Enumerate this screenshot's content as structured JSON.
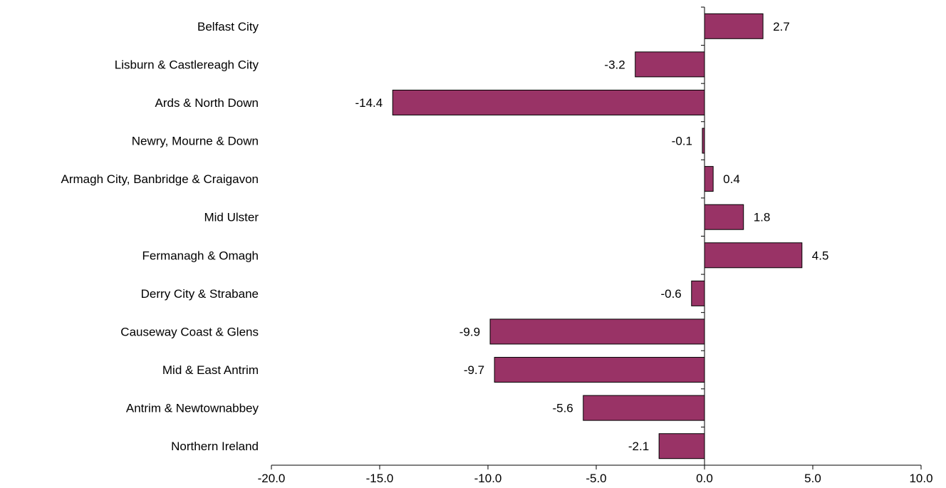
{
  "chart_data": {
    "type": "bar",
    "orientation": "horizontal",
    "title": "",
    "xlabel": "",
    "ylabel": "",
    "categories": [
      "Belfast City",
      "Lisburn & Castlereagh City",
      "Ards & North Down",
      "Newry, Mourne & Down",
      "Armagh City, Banbridge & Craigavon",
      "Mid Ulster",
      "Fermanagh & Omagh",
      "Derry City & Strabane",
      "Causeway Coast & Glens",
      "Mid & East Antrim",
      "Antrim & Newtownabbey",
      "Northern Ireland"
    ],
    "values": [
      2.7,
      -3.2,
      -14.4,
      -0.1,
      0.4,
      1.8,
      4.5,
      -0.6,
      -9.9,
      -9.7,
      -5.6,
      -2.1
    ],
    "data_labels": [
      "2.7",
      "-3.2",
      "-14.4",
      "-0.1",
      "0.4",
      "1.8",
      "4.5",
      "-0.6",
      "-9.9",
      "-9.7",
      "-5.6",
      "-2.1"
    ],
    "xlim": [
      -20,
      10
    ],
    "x_ticks": [
      -20,
      -15,
      -10,
      -5,
      0,
      5,
      10
    ],
    "x_tick_labels": [
      "-20.0",
      "-15.0",
      "-10.0",
      "-5.0",
      "0.0",
      "5.0",
      "10.0"
    ],
    "grid": false,
    "legend": "none",
    "colors": {
      "bar_fill": "#993366",
      "bar_stroke": "#000000",
      "axis": "#000000"
    }
  }
}
